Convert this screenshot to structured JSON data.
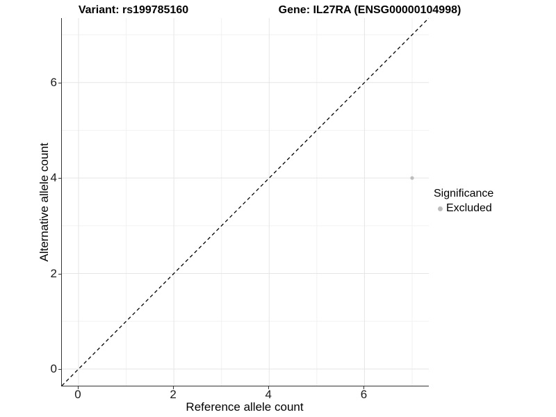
{
  "chart_data": {
    "type": "scatter",
    "title_left": "Variant: rs199785160",
    "title_right": "Gene: IL27RA (ENSG00000104998)",
    "xlabel": "Reference allele count",
    "ylabel": "Alternative allele count",
    "xlim": [
      -0.35,
      7.35
    ],
    "ylim": [
      -0.35,
      7.35
    ],
    "xticks": [
      0,
      2,
      4,
      6
    ],
    "yticks": [
      0,
      2,
      4,
      6
    ],
    "minor_xticks": [
      1,
      3,
      5,
      7
    ],
    "minor_yticks": [
      1,
      3,
      5,
      7
    ],
    "grid": true,
    "points": [
      {
        "x": 7,
        "y": 4,
        "label": "Excluded",
        "color": "#bdbdbd"
      }
    ],
    "reference_line": {
      "equation": "y = x",
      "style": "dashed",
      "color": "#000000"
    },
    "legend": {
      "title": "Significance",
      "position": "right",
      "entries": [
        {
          "label": "Excluded",
          "color": "#bdbdbd"
        }
      ]
    }
  }
}
